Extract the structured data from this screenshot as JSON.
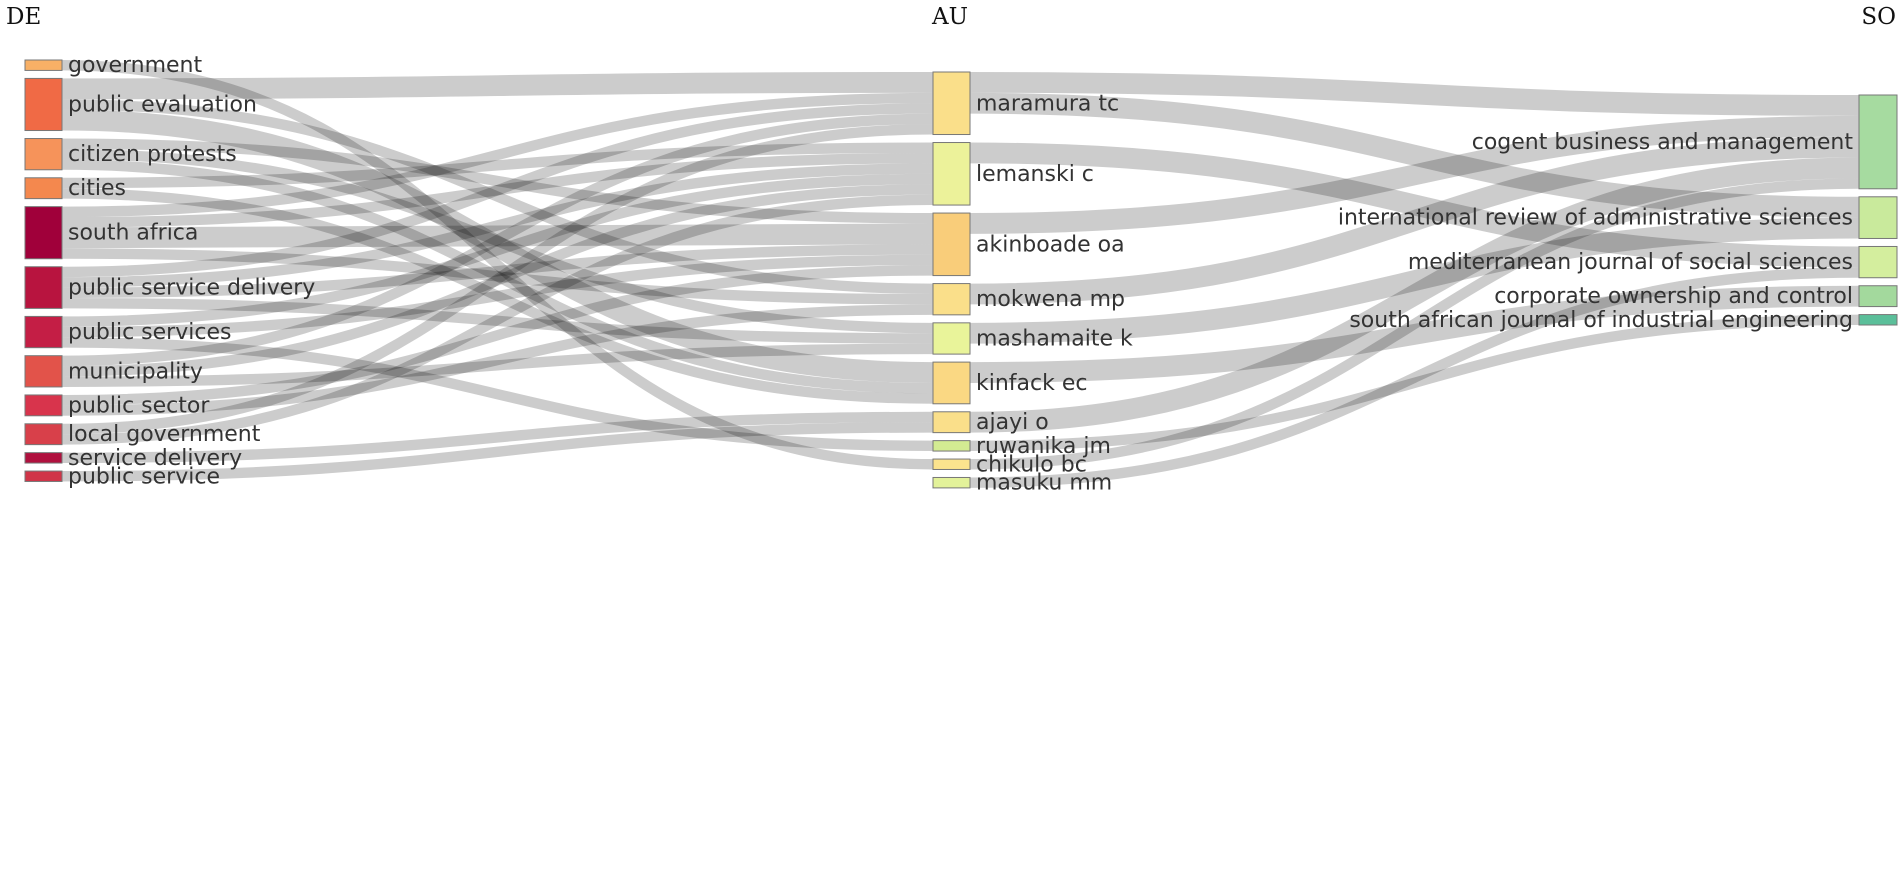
{
  "chart_data": {
    "type": "sankey",
    "columns": [
      {
        "key": "DE",
        "label": "DE"
      },
      {
        "key": "AU",
        "label": "AU"
      },
      {
        "key": "SO",
        "label": "SO"
      }
    ],
    "nodes": [
      {
        "id": "government",
        "label": "government",
        "column": "DE",
        "color": "#f8b066"
      },
      {
        "id": "public-evaluation",
        "label": "public evaluation",
        "column": "DE",
        "color": "#f06a45"
      },
      {
        "id": "citizen-protests",
        "label": "citizen protests",
        "column": "DE",
        "color": "#f6935a"
      },
      {
        "id": "cities",
        "label": "cities",
        "column": "DE",
        "color": "#f4884e"
      },
      {
        "id": "south-africa",
        "label": "south africa",
        "column": "DE",
        "color": "#a0003a"
      },
      {
        "id": "public-service-delivery",
        "label": "public service delivery",
        "column": "DE",
        "color": "#b8143f"
      },
      {
        "id": "public-services",
        "label": "public services",
        "column": "DE",
        "color": "#c41e45"
      },
      {
        "id": "municipality",
        "label": "municipality",
        "column": "DE",
        "color": "#e2534a"
      },
      {
        "id": "public-sector",
        "label": "public sector",
        "column": "DE",
        "color": "#d8344c"
      },
      {
        "id": "local-government",
        "label": "local government",
        "column": "DE",
        "color": "#d8404a"
      },
      {
        "id": "service-delivery",
        "label": "service delivery",
        "column": "DE",
        "color": "#b0103e"
      },
      {
        "id": "public-service",
        "label": "public service",
        "column": "DE",
        "color": "#d03548"
      },
      {
        "id": "maramura-tc",
        "label": "maramura tc",
        "column": "AU",
        "color": "#fadf8a"
      },
      {
        "id": "lemanski-c",
        "label": "lemanski c",
        "column": "AU",
        "color": "#ecf29a"
      },
      {
        "id": "akinboade-oa",
        "label": "akinboade oa",
        "column": "AU",
        "color": "#f9cd7a"
      },
      {
        "id": "mokwena-mp",
        "label": "mokwena mp",
        "column": "AU",
        "color": "#fadf8a"
      },
      {
        "id": "mashamaite-k",
        "label": "mashamaite k",
        "column": "AU",
        "color": "#e9f49a"
      },
      {
        "id": "kinfack-ec",
        "label": "kinfack ec",
        "column": "AU",
        "color": "#fad883"
      },
      {
        "id": "ajayi-o",
        "label": "ajayi o",
        "column": "AU",
        "color": "#fadf8a"
      },
      {
        "id": "ruwanika-jm",
        "label": "ruwanika jm",
        "column": "AU",
        "color": "#d3eb92"
      },
      {
        "id": "chikulo-bc",
        "label": "chikulo bc",
        "column": "AU",
        "color": "#fbe38e"
      },
      {
        "id": "masuku-mm",
        "label": "masuku mm",
        "column": "AU",
        "color": "#e3f29a"
      },
      {
        "id": "cogent",
        "label": "cogent business and management",
        "column": "SO",
        "color": "#a6dba0"
      },
      {
        "id": "iras",
        "label": "international review of administrative sciences",
        "column": "SO",
        "color": "#c9ea9c"
      },
      {
        "id": "mjss",
        "label": "mediterranean journal of social sciences",
        "column": "SO",
        "color": "#d4ee9e"
      },
      {
        "id": "coc",
        "label": "corporate ownership and control",
        "column": "SO",
        "color": "#a3d99d"
      },
      {
        "id": "sajie",
        "label": "south african journal of industrial engineering",
        "column": "SO",
        "color": "#5bbf9a"
      }
    ],
    "links": [
      {
        "source": "government",
        "target": "chikulo-bc",
        "value": 1
      },
      {
        "source": "public-evaluation",
        "target": "maramura-tc",
        "value": 2
      },
      {
        "source": "public-evaluation",
        "target": "mokwena-mp",
        "value": 1
      },
      {
        "source": "public-evaluation",
        "target": "kinfack-ec",
        "value": 2
      },
      {
        "source": "citizen-protests",
        "target": "akinboade-oa",
        "value": 1
      },
      {
        "source": "citizen-protests",
        "target": "mashamaite-k",
        "value": 1
      },
      {
        "source": "citizen-protests",
        "target": "kinfack-ec",
        "value": 1
      },
      {
        "source": "cities",
        "target": "lemanski-c",
        "value": 1
      },
      {
        "source": "cities",
        "target": "kinfack-ec",
        "value": 1
      },
      {
        "source": "south-africa",
        "target": "maramura-tc",
        "value": 1
      },
      {
        "source": "south-africa",
        "target": "lemanski-c",
        "value": 1
      },
      {
        "source": "south-africa",
        "target": "akinboade-oa",
        "value": 2
      },
      {
        "source": "south-africa",
        "target": "mokwena-mp",
        "value": 1
      },
      {
        "source": "public-service-delivery",
        "target": "maramura-tc",
        "value": 1
      },
      {
        "source": "public-service-delivery",
        "target": "lemanski-c",
        "value": 1
      },
      {
        "source": "public-service-delivery",
        "target": "akinboade-oa",
        "value": 1
      },
      {
        "source": "public-service-delivery",
        "target": "mashamaite-k",
        "value": 1
      },
      {
        "source": "public-services",
        "target": "lemanski-c",
        "value": 1
      },
      {
        "source": "public-services",
        "target": "akinboade-oa",
        "value": 1
      },
      {
        "source": "public-services",
        "target": "ruwanika-jm",
        "value": 1
      },
      {
        "source": "municipality",
        "target": "maramura-tc",
        "value": 1
      },
      {
        "source": "municipality",
        "target": "lemanski-c",
        "value": 1
      },
      {
        "source": "municipality",
        "target": "mashamaite-k",
        "value": 1
      },
      {
        "source": "public-sector",
        "target": "akinboade-oa",
        "value": 1
      },
      {
        "source": "public-sector",
        "target": "mokwena-mp",
        "value": 1
      },
      {
        "source": "local-government",
        "target": "lemanski-c",
        "value": 1
      },
      {
        "source": "local-government",
        "target": "maramura-tc",
        "value": 1
      },
      {
        "source": "service-delivery",
        "target": "ajayi-o",
        "value": 1
      },
      {
        "source": "public-service",
        "target": "ajayi-o",
        "value": 1
      },
      {
        "source": "maramura-tc",
        "target": "cogent",
        "value": 2
      },
      {
        "source": "maramura-tc",
        "target": "iras",
        "value": 2
      },
      {
        "source": "lemanski-c",
        "target": "mjss",
        "value": 2
      },
      {
        "source": "akinboade-oa",
        "target": "cogent",
        "value": 2
      },
      {
        "source": "mokwena-mp",
        "target": "cogent",
        "value": 2
      },
      {
        "source": "mashamaite-k",
        "target": "iras",
        "value": 2
      },
      {
        "source": "kinfack-ec",
        "target": "coc",
        "value": 2
      },
      {
        "source": "ajayi-o",
        "target": "cogent",
        "value": 2
      },
      {
        "source": "ruwanika-jm",
        "target": "sajie",
        "value": 1
      },
      {
        "source": "chikulo-bc",
        "target": "cogent",
        "value": 1
      },
      {
        "source": "masuku-mm",
        "target": "mjss",
        "value": 1
      }
    ]
  }
}
